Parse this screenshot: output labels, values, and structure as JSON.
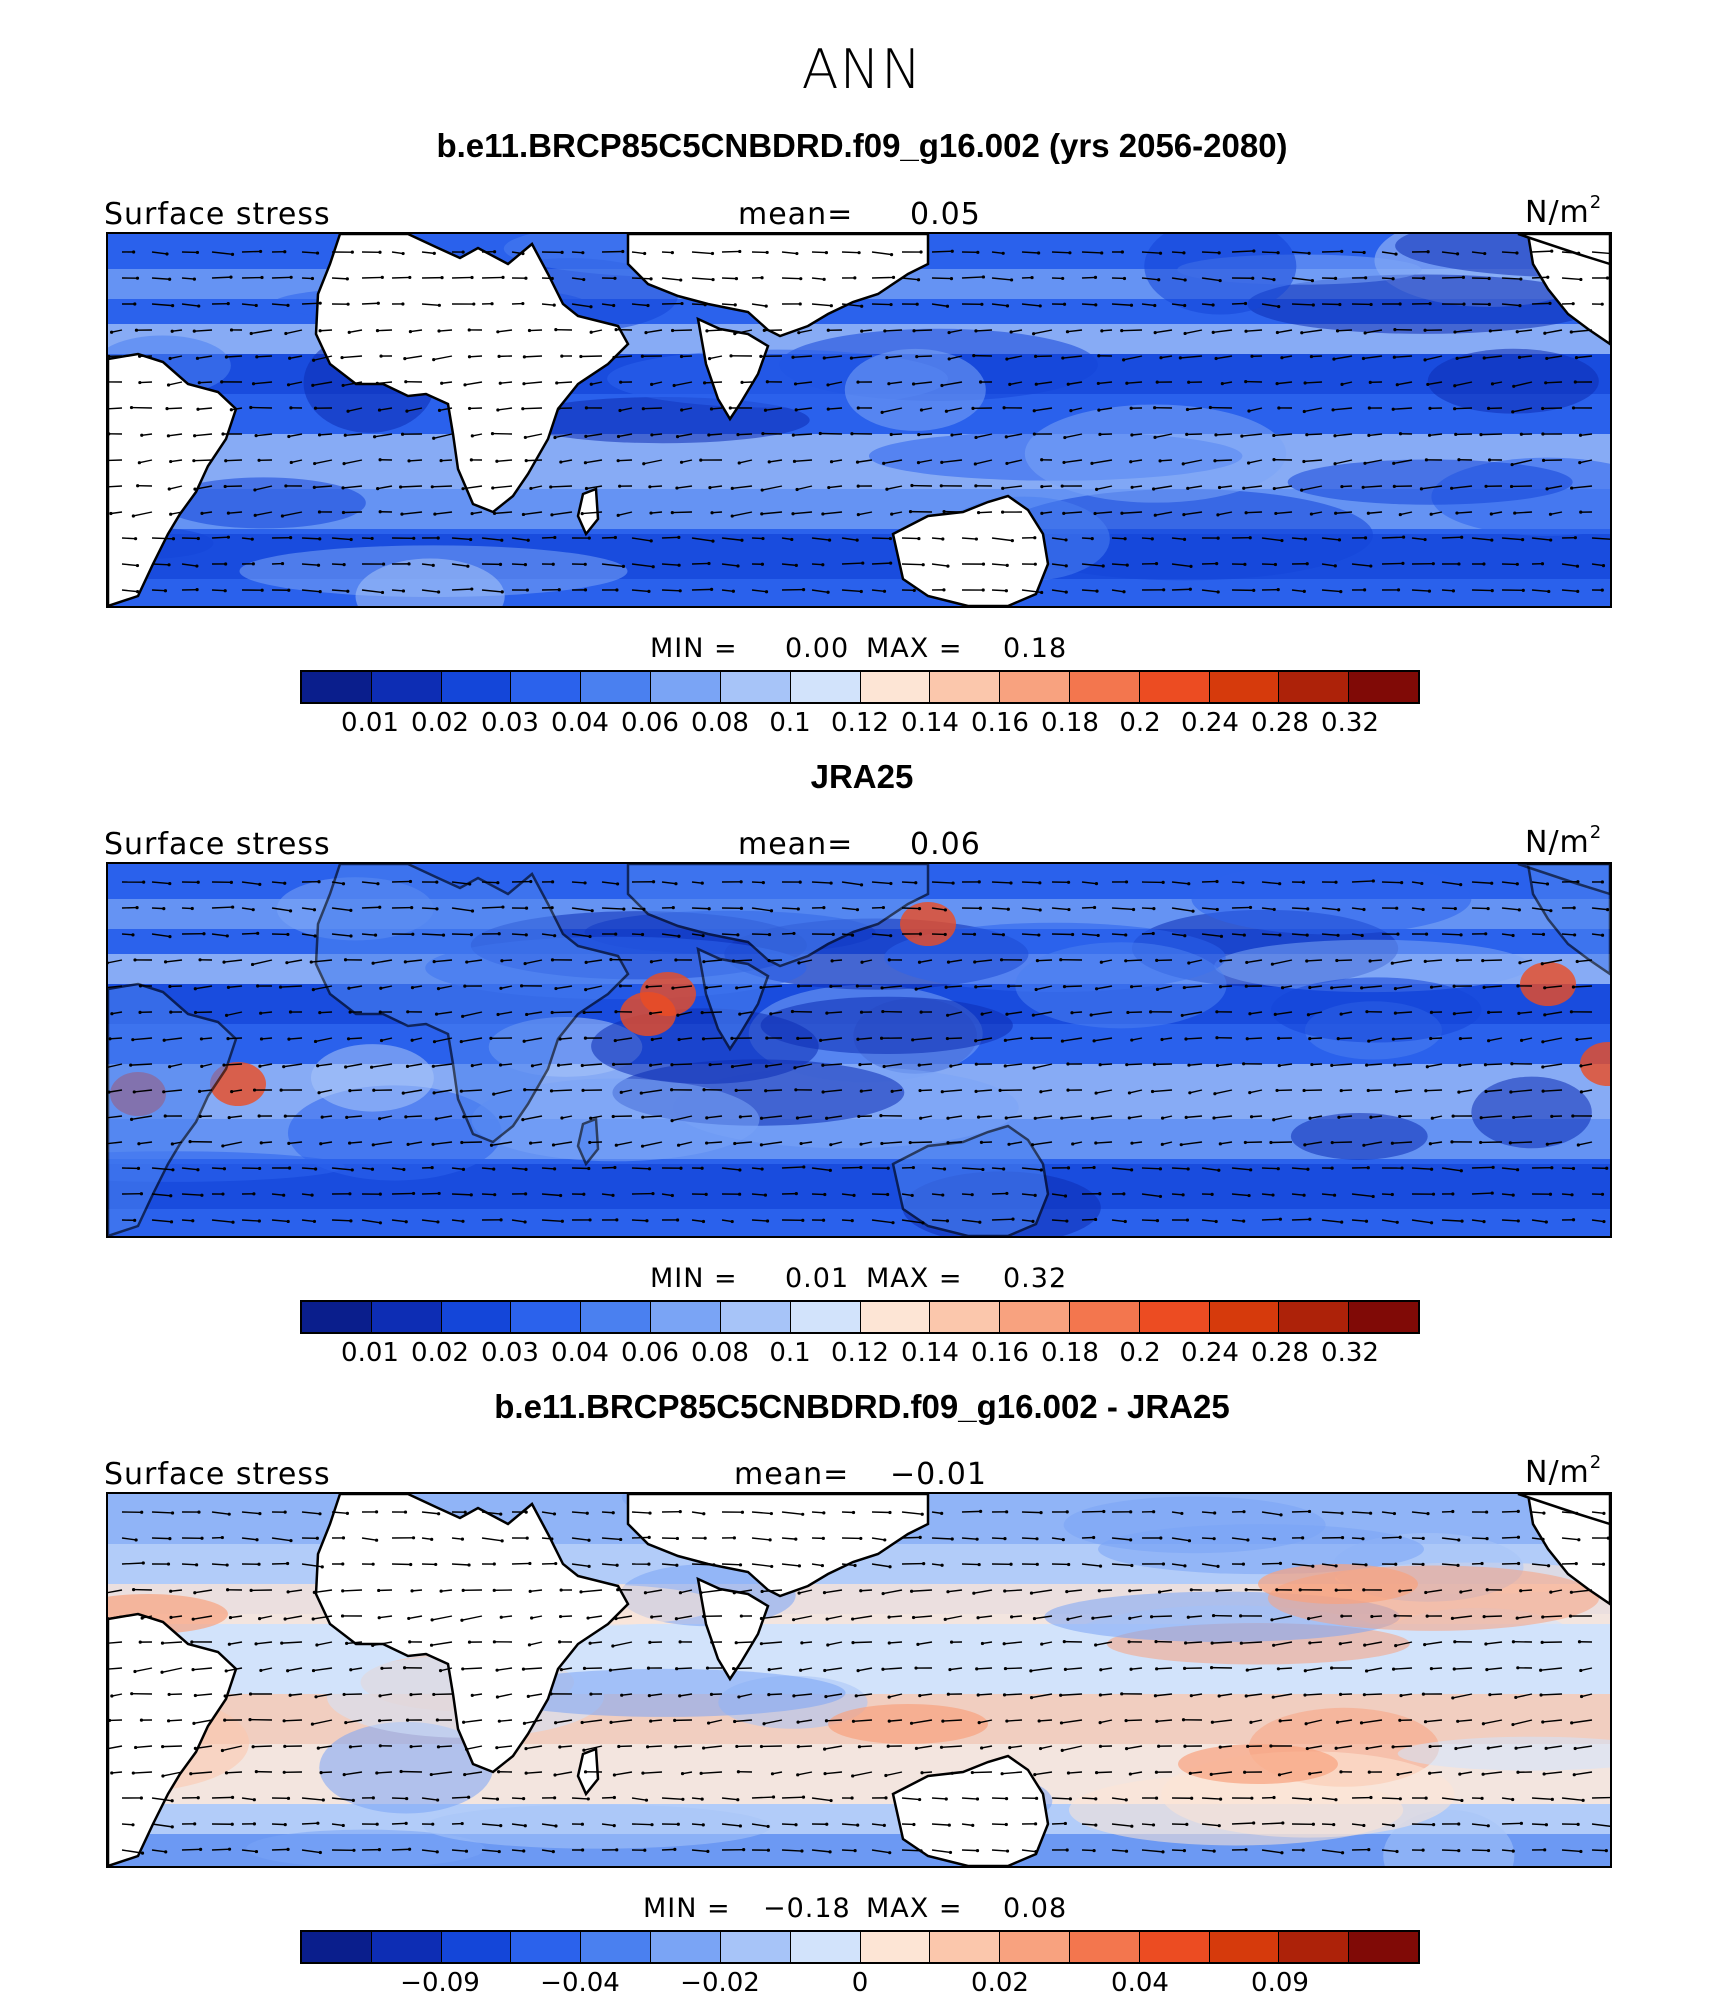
{
  "title": "ANN",
  "colorbar_colors": [
    "#0a1e8c",
    "#0d2db4",
    "#1446d9",
    "#2b62ec",
    "#4a80f0",
    "#7aa4f5",
    "#a7c4f8",
    "#d2e3fb",
    "#fde5d5",
    "#fbc7ac",
    "#f8a27f",
    "#f3764e",
    "#ec4c22",
    "#d63a0c",
    "#ad2209",
    "#800a06"
  ],
  "panels": [
    {
      "title": "b.e11.BRCP85C5CNBDRD.f09_g16.002 (yrs 2056-2080)",
      "left_label": "Surface stress",
      "mean_label": "mean=",
      "mean_value": "0.05",
      "units": "N/m",
      "units_sup": "2",
      "min_label": "MIN =",
      "min_value": "0.00",
      "max_label": "MAX =",
      "max_value": "0.18",
      "colorbar_ticks": [
        "0.01",
        "0.02",
        "0.03",
        "0.04",
        "0.06",
        "0.08",
        "0.1",
        "0.12",
        "0.14",
        "0.16",
        "0.18",
        "0.2",
        "0.24",
        "0.28",
        "0.32"
      ],
      "field_tint": "#2b62ec",
      "land_fill": "#ffffff"
    },
    {
      "title": "JRA25",
      "left_label": "Surface stress",
      "mean_label": "mean=",
      "mean_value": "0.06",
      "units": "N/m",
      "units_sup": "2",
      "min_label": "MIN =",
      "min_value": "0.01",
      "max_label": "MAX =",
      "max_value": "0.32",
      "colorbar_ticks": [
        "0.01",
        "0.02",
        "0.03",
        "0.04",
        "0.06",
        "0.08",
        "0.1",
        "0.12",
        "0.14",
        "0.16",
        "0.18",
        "0.2",
        "0.24",
        "0.28",
        "0.32"
      ],
      "field_tint": "#2b62ec",
      "land_fill": "#4a80f0"
    },
    {
      "title": "b.e11.BRCP85C5CNBDRD.f09_g16.002 - JRA25",
      "left_label": "Surface stress",
      "mean_label": "mean=",
      "mean_value": "−0.01",
      "units": "N/m",
      "units_sup": "2",
      "min_label": "MIN =",
      "min_value": "−0.18",
      "max_label": "MAX =",
      "max_value": "0.08",
      "colorbar_ticks": [
        "−0.09",
        "−0.04",
        "−0.02",
        "0",
        "0.02",
        "0.04",
        "0.09"
      ],
      "colorbar_tick_positions": [
        2,
        4,
        6,
        8,
        10,
        12,
        14
      ],
      "field_tint": "#d2e3fb",
      "land_fill": "#ffffff"
    }
  ]
}
